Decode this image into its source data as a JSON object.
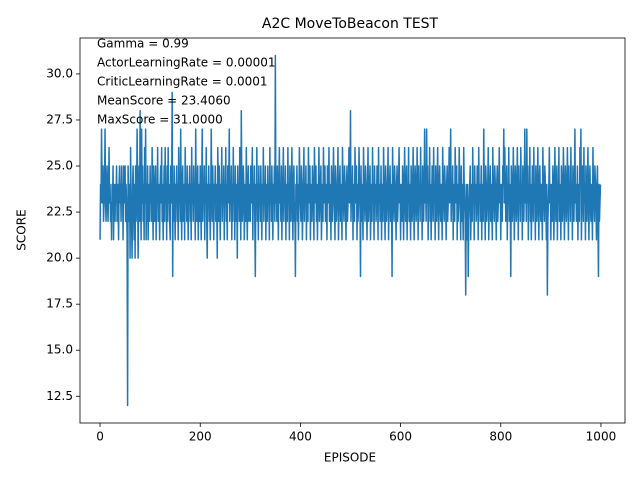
{
  "chart_data": {
    "type": "line",
    "title": "A2C MoveToBeacon TEST",
    "xlabel": "EPISODE",
    "ylabel": "SCORE",
    "annotations": [
      "Gamma = 0.99",
      "ActorLearningRate = 0.00001",
      "CriticLearningRate = 0.0001",
      "MeanScore = 23.4060",
      "MaxScore = 31.0000"
    ],
    "color": "#1f77b4",
    "xlim": [
      -40,
      1048
    ],
    "ylim": [
      11.05,
      31.95
    ],
    "xticks": [
      0,
      200,
      400,
      600,
      800,
      1000
    ],
    "yticks": [
      {
        "value": 12.5,
        "label": "12.5"
      },
      {
        "value": 15,
        "label": "15.0"
      },
      {
        "value": 17.5,
        "label": "17.5"
      },
      {
        "value": 20,
        "label": "20.0"
      },
      {
        "value": 22.5,
        "label": "22.5"
      },
      {
        "value": 25,
        "label": "25.0"
      },
      {
        "value": 27.5,
        "label": "27.5"
      },
      {
        "value": 30,
        "label": "30.0"
      }
    ],
    "values": [
      21,
      24,
      23,
      27,
      24,
      23,
      25,
      22,
      23,
      24,
      27,
      23,
      22,
      24,
      25,
      23,
      22,
      24,
      26,
      23,
      24,
      22,
      23,
      21,
      24,
      23,
      25,
      21,
      24,
      23,
      22,
      24,
      23,
      25,
      22,
      24,
      23,
      21,
      24,
      25,
      23,
      24,
      22,
      25,
      23,
      24,
      21,
      25,
      23,
      24,
      25,
      22,
      24,
      23,
      21,
      12,
      25,
      23,
      22,
      24,
      20,
      26,
      23,
      22,
      20,
      24,
      25,
      23,
      21,
      24,
      20,
      25,
      22,
      23,
      27,
      24,
      20,
      23,
      25,
      22,
      28,
      24,
      21,
      27,
      23,
      25,
      22,
      24,
      21,
      26,
      23,
      27,
      21,
      24,
      22,
      25,
      21,
      23,
      24,
      22,
      25,
      23,
      24,
      22,
      26,
      23,
      21,
      25,
      24,
      22,
      23,
      25,
      21,
      24,
      23,
      26,
      22,
      24,
      23,
      21,
      24,
      25,
      23,
      26,
      22,
      24,
      21,
      23,
      25,
      22,
      26,
      23,
      24,
      21,
      25,
      22,
      26,
      23,
      24,
      22,
      21,
      25,
      23,
      24,
      29,
      19,
      24,
      22,
      25,
      23,
      21,
      24,
      23,
      25,
      22,
      24,
      21,
      26,
      23,
      24,
      22,
      27,
      23,
      21,
      24,
      25,
      22,
      23,
      24,
      21,
      26,
      23,
      24,
      22,
      25,
      23,
      21,
      24,
      23,
      25,
      22,
      24,
      21,
      26,
      23,
      24,
      22,
      25,
      23,
      24,
      21,
      27,
      23,
      22,
      24,
      25,
      21,
      23,
      24,
      22,
      25,
      23,
      21,
      24,
      27,
      22,
      24,
      23,
      25,
      21,
      24,
      23,
      26,
      22,
      20,
      24,
      23,
      25,
      22,
      24,
      21,
      23,
      27,
      24,
      22,
      25,
      23,
      21,
      24,
      23,
      25,
      22,
      24,
      23,
      20,
      26,
      24,
      22,
      25,
      23,
      21,
      24,
      23,
      26,
      22,
      24,
      23,
      25,
      21,
      24,
      23,
      26,
      22,
      24,
      21,
      25,
      23,
      24,
      27,
      22,
      24,
      23,
      25,
      21,
      24,
      22,
      26,
      23,
      24,
      21,
      25,
      23,
      22,
      24,
      20,
      25,
      23,
      24,
      22,
      26,
      23,
      21,
      28,
      24,
      22,
      23,
      25,
      24,
      21,
      23,
      24,
      22,
      26,
      23,
      21,
      24,
      25,
      22,
      23,
      24,
      22,
      25,
      23,
      24,
      26,
      21,
      24,
      23,
      25,
      22,
      19,
      24,
      23,
      26,
      22,
      24,
      21,
      25,
      23,
      24,
      22,
      25,
      23,
      21,
      24,
      23,
      26,
      22,
      24,
      23,
      25,
      21,
      24,
      23,
      22,
      25,
      23,
      24,
      21,
      26,
      23,
      24,
      22,
      25,
      23,
      21,
      24,
      23,
      25,
      22,
      31,
      23,
      24,
      22,
      25,
      23,
      21,
      24,
      26,
      23,
      24,
      22,
      25,
      21,
      23,
      24,
      26,
      22,
      24,
      23,
      25,
      21,
      24,
      23,
      22,
      26,
      23,
      24,
      21,
      25,
      23,
      22,
      24,
      26,
      23,
      21,
      24,
      25,
      22,
      23,
      19,
      24,
      23,
      25,
      22,
      24,
      21,
      23,
      26,
      24,
      23,
      22,
      25,
      24,
      21,
      23,
      24,
      26,
      22,
      24,
      23,
      25,
      21,
      24,
      23,
      22,
      26,
      24,
      23,
      25,
      21,
      24,
      23,
      22,
      25,
      24,
      23,
      21,
      26,
      24,
      23,
      25,
      22,
      24,
      21,
      23,
      24,
      26,
      22,
      23,
      24,
      25,
      21,
      23,
      24,
      22,
      26,
      23,
      24,
      25,
      22,
      24,
      23,
      21,
      25,
      24,
      23,
      26,
      22,
      24,
      23,
      21,
      25,
      24,
      22,
      23,
      26,
      24,
      23,
      21,
      25,
      24,
      22,
      23,
      24,
      26,
      21,
      23,
      24,
      25,
      22,
      24,
      23,
      21,
      26,
      24,
      23,
      22,
      25,
      24,
      23,
      21,
      24,
      25,
      22,
      23,
      24,
      26,
      23,
      24,
      28,
      22,
      24,
      23,
      25,
      21,
      24,
      23,
      22,
      26,
      24,
      23,
      25,
      21,
      24,
      22,
      23,
      26,
      24,
      23,
      19,
      25,
      22,
      24,
      23,
      21,
      26,
      24,
      23,
      22,
      25,
      24,
      23,
      21,
      24,
      26,
      22,
      23,
      24,
      25,
      21,
      23,
      24,
      22,
      26,
      23,
      24,
      21,
      25,
      23,
      24,
      22,
      23,
      25,
      24,
      21,
      26,
      23,
      24,
      22,
      23,
      25,
      21,
      24,
      23,
      22,
      26,
      24,
      23,
      21,
      25,
      24,
      22,
      23,
      24,
      26,
      21,
      23,
      24,
      25,
      22,
      24,
      23,
      19,
      26,
      24,
      23,
      22,
      25,
      24,
      23,
      21,
      24,
      25,
      22,
      23,
      24,
      26,
      23,
      24,
      21,
      24,
      23,
      22,
      25,
      24,
      21,
      23,
      26,
      24,
      22,
      23,
      25,
      21,
      24,
      23,
      26,
      22,
      24,
      23,
      21,
      25,
      24,
      22,
      23,
      26,
      24,
      21,
      23,
      25,
      24,
      22,
      23,
      26,
      24,
      21,
      25,
      23,
      24,
      22,
      26,
      23,
      24,
      21,
      25,
      23,
      22,
      24,
      27,
      23,
      24,
      22,
      27,
      23,
      25,
      21,
      24,
      23,
      26,
      22,
      24,
      21,
      23,
      25,
      24,
      22,
      26,
      23,
      24,
      21,
      25,
      23,
      22,
      24,
      26,
      23,
      21,
      24,
      25,
      23,
      22,
      24,
      23,
      21,
      26,
      24,
      23,
      22,
      25,
      24,
      23,
      21,
      24,
      25,
      22,
      23,
      24,
      26,
      23,
      24,
      27,
      22,
      24,
      23,
      25,
      21,
      24,
      23,
      22,
      26,
      24,
      23,
      25,
      21,
      24,
      22,
      23,
      26,
      24,
      23,
      21,
      25,
      22,
      24,
      23,
      21,
      26,
      24,
      23,
      22,
      18,
      24,
      23,
      21,
      24,
      19,
      22,
      23,
      24,
      25,
      21,
      23,
      24,
      22,
      26,
      23,
      24,
      21,
      25,
      23,
      24,
      22,
      23,
      25,
      24,
      21,
      26,
      23,
      24,
      22,
      23,
      25,
      21,
      24,
      23,
      22,
      27,
      24,
      23,
      21,
      25,
      24,
      22,
      23,
      24,
      26,
      21,
      23,
      24,
      25,
      22,
      24,
      23,
      21,
      26,
      24,
      23,
      22,
      25,
      24,
      23,
      21,
      24,
      25,
      22,
      23,
      24,
      26,
      23,
      24,
      21,
      24,
      23,
      22,
      25,
      24,
      27,
      23,
      26,
      24,
      22,
      23,
      25,
      21,
      24,
      23,
      26,
      22,
      24,
      23,
      19,
      25,
      24,
      22,
      23,
      26,
      24,
      21,
      23,
      25,
      24,
      22,
      23,
      26,
      24,
      21,
      25,
      23,
      24,
      22,
      26,
      23,
      24,
      21,
      25,
      23,
      22,
      24,
      27,
      23,
      24,
      22,
      27,
      23,
      25,
      21,
      24,
      23,
      26,
      22,
      24,
      21,
      23,
      25,
      24,
      22,
      26,
      23,
      24,
      21,
      25,
      23,
      22,
      24,
      26,
      23,
      21,
      24,
      25,
      23,
      22,
      24,
      23,
      21,
      26,
      24,
      23,
      22,
      25,
      24,
      23,
      21,
      24,
      18,
      22,
      23,
      24,
      26,
      23,
      24,
      21,
      24,
      23,
      22,
      25,
      24,
      21,
      23,
      26,
      24,
      22,
      23,
      25,
      21,
      24,
      23,
      26,
      22,
      24,
      23,
      21,
      25,
      24,
      22,
      23,
      26,
      24,
      21,
      23,
      25,
      24,
      22,
      23,
      26,
      24,
      21,
      25,
      23,
      24,
      22,
      26,
      23,
      24,
      21,
      25,
      23,
      22,
      24,
      27,
      23,
      24,
      22,
      23,
      25,
      21,
      24,
      23,
      22,
      26,
      24,
      27,
      21,
      23,
      25,
      24,
      22,
      26,
      23,
      24,
      21,
      25,
      23,
      22,
      24,
      26,
      23,
      21,
      24,
      25,
      23,
      22,
      24,
      23,
      21,
      26,
      24,
      23,
      22,
      25,
      24,
      23,
      21,
      24,
      25,
      22,
      19,
      24,
      22,
      23,
      24
    ]
  }
}
